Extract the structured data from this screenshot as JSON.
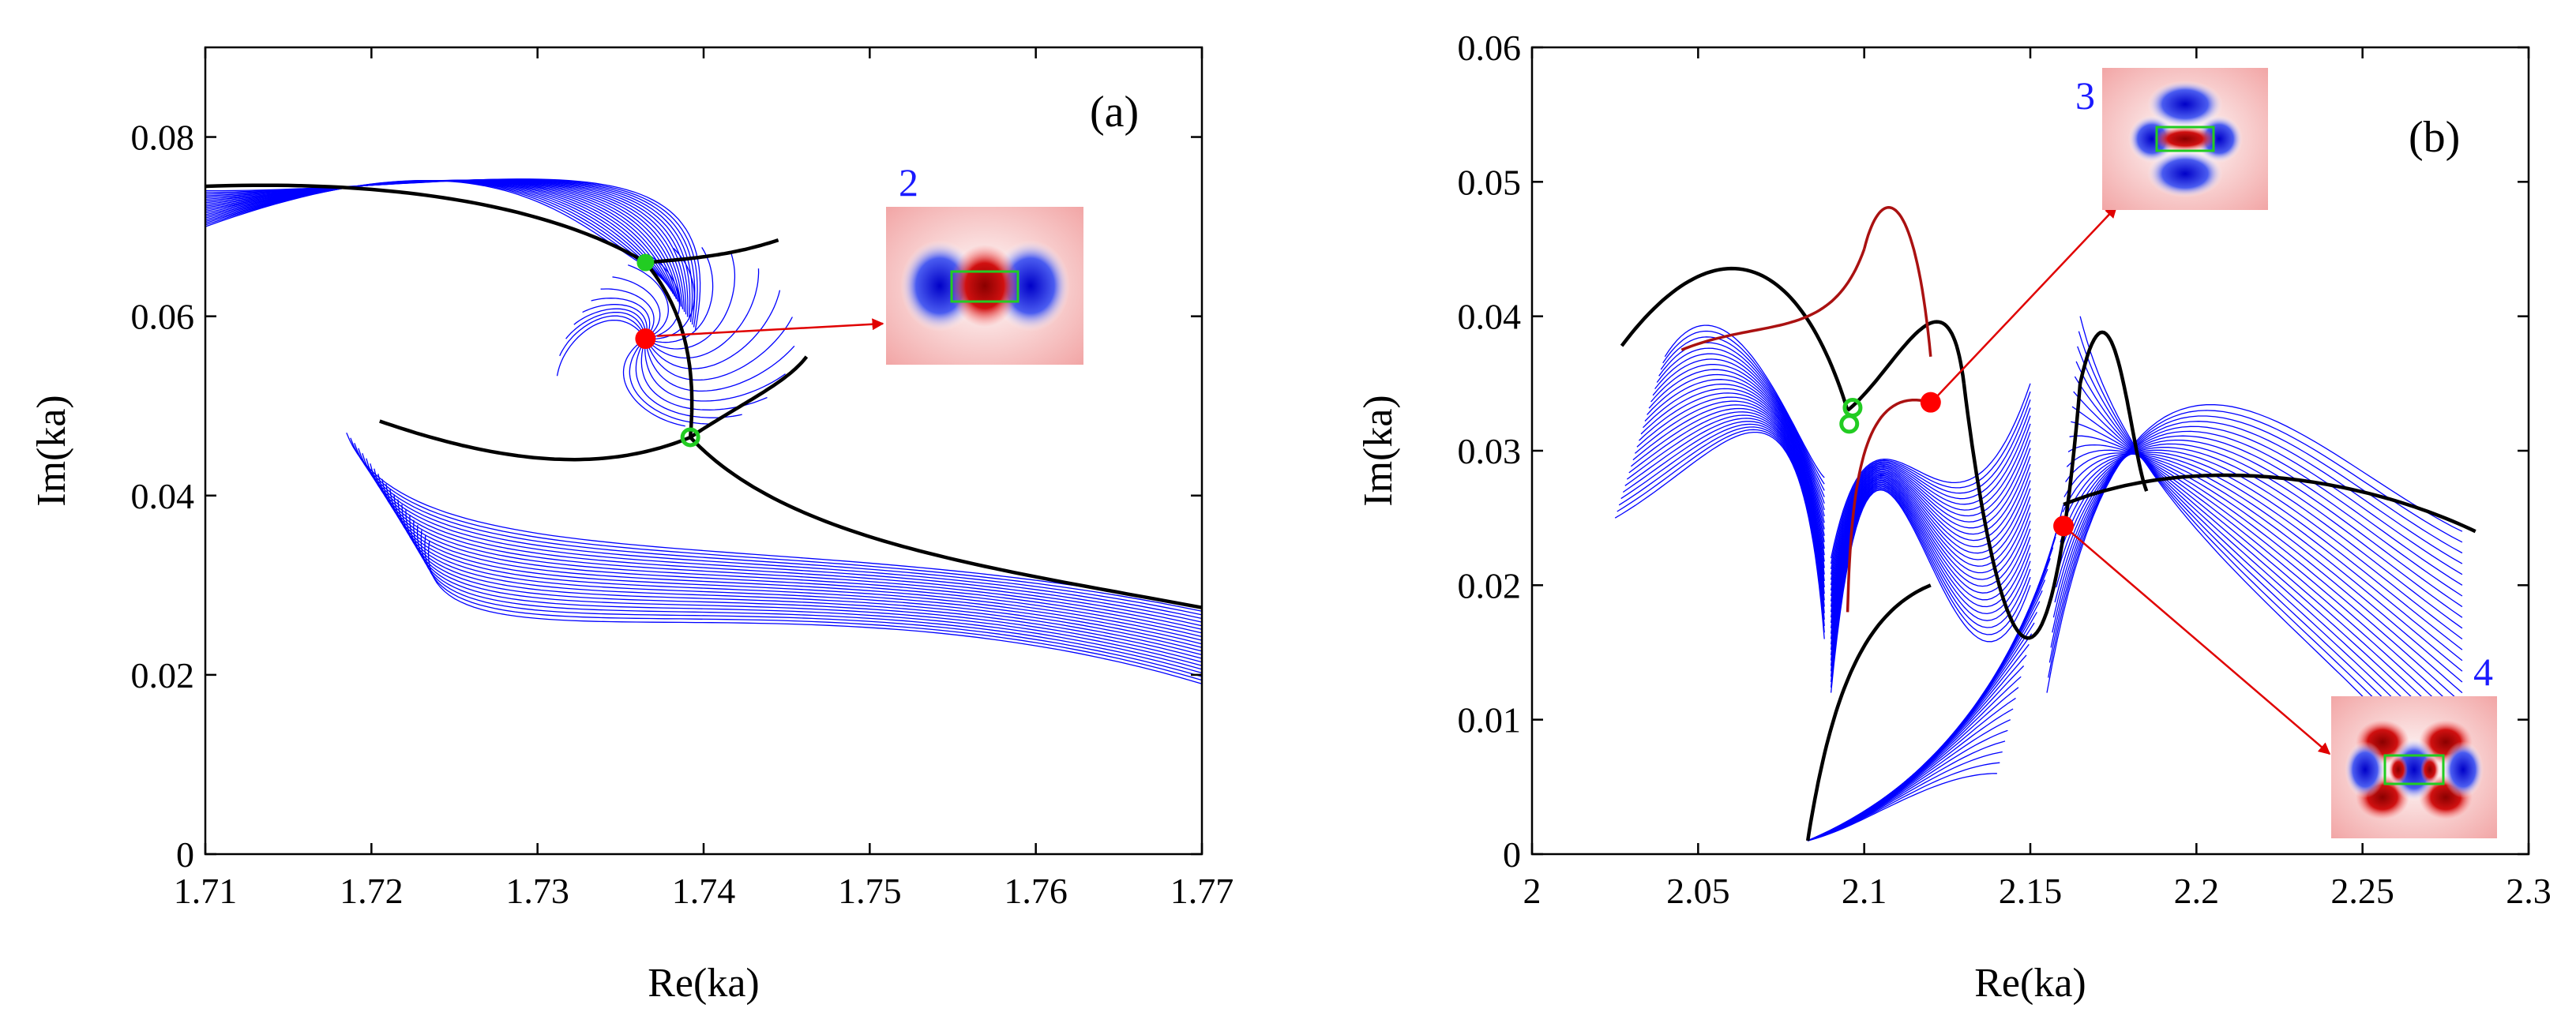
{
  "chart_data": [
    {
      "type": "line",
      "panel": "(a)",
      "xlabel": "Re(ka)",
      "ylabel": "Im(ka)",
      "xlim": [
        1.71,
        1.77
      ],
      "ylim": [
        0,
        0.09
      ],
      "x_ticks": [
        1.71,
        1.72,
        1.73,
        1.74,
        1.75,
        1.76,
        1.77
      ],
      "x_tick_labels": [
        "1.71",
        "1.72",
        "1.73",
        "1.74",
        "1.75",
        "1.76",
        "1.77"
      ],
      "y_ticks": [
        0,
        0.02,
        0.04,
        0.06,
        0.08
      ],
      "y_tick_labels": [
        "0",
        "0.02",
        "0.04",
        "0.06",
        "0.08"
      ],
      "grid": false,
      "series": [
        {
          "name": "trajectories",
          "color": "#0000ff",
          "description": "family of blue eigenvalue trajectories"
        },
        {
          "name": "highlighted trajectories",
          "color": "#000000"
        }
      ],
      "markers": [
        {
          "label": "exceptional point",
          "x": 1.7365,
          "y": 0.066,
          "style": "filled",
          "color": "#22cc22"
        },
        {
          "label": "mode 2",
          "x": 1.7365,
          "y": 0.0575,
          "style": "filled",
          "color": "#ff0000"
        },
        {
          "label": "exceptional point",
          "x": 1.7392,
          "y": 0.0465,
          "style": "open",
          "color": "#22cc22"
        }
      ],
      "insets": [
        {
          "label": "2",
          "from": {
            "x": 1.7365,
            "y": 0.0575
          }
        }
      ]
    },
    {
      "type": "line",
      "panel": "(b)",
      "xlabel": "Re(ka)",
      "ylabel": "Im(ka)",
      "xlim": [
        2.0,
        2.3
      ],
      "ylim": [
        0,
        0.06
      ],
      "x_ticks": [
        2.0,
        2.05,
        2.1,
        2.15,
        2.2,
        2.25,
        2.3
      ],
      "x_tick_labels": [
        "2",
        "2.05",
        "2.1",
        "2.15",
        "2.2",
        "2.25",
        "2.3"
      ],
      "y_ticks": [
        0,
        0.01,
        0.02,
        0.03,
        0.04,
        0.05,
        0.06
      ],
      "y_tick_labels": [
        "0",
        "0.01",
        "0.02",
        "0.03",
        "0.04",
        "0.05",
        "0.06"
      ],
      "grid": false,
      "series": [
        {
          "name": "trajectories",
          "color": "#0000ff"
        },
        {
          "name": "highlighted trajectories",
          "color": "#000000"
        },
        {
          "name": "highlighted trajectory",
          "color": "#aa1111"
        }
      ],
      "markers": [
        {
          "label": "exceptional point",
          "x": 2.0955,
          "y": 0.032,
          "style": "open",
          "color": "#22cc22"
        },
        {
          "label": "exceptional point",
          "x": 2.0965,
          "y": 0.0332,
          "style": "open",
          "color": "#22cc22"
        },
        {
          "label": "mode 3",
          "x": 2.12,
          "y": 0.0336,
          "style": "filled",
          "color": "#ff0000"
        },
        {
          "label": "mode 4",
          "x": 2.16,
          "y": 0.0244,
          "style": "filled",
          "color": "#ff0000"
        }
      ],
      "insets": [
        {
          "label": "3",
          "from": {
            "x": 2.12,
            "y": 0.0336
          }
        },
        {
          "label": "4",
          "from": {
            "x": 2.16,
            "y": 0.0244
          }
        }
      ]
    }
  ]
}
